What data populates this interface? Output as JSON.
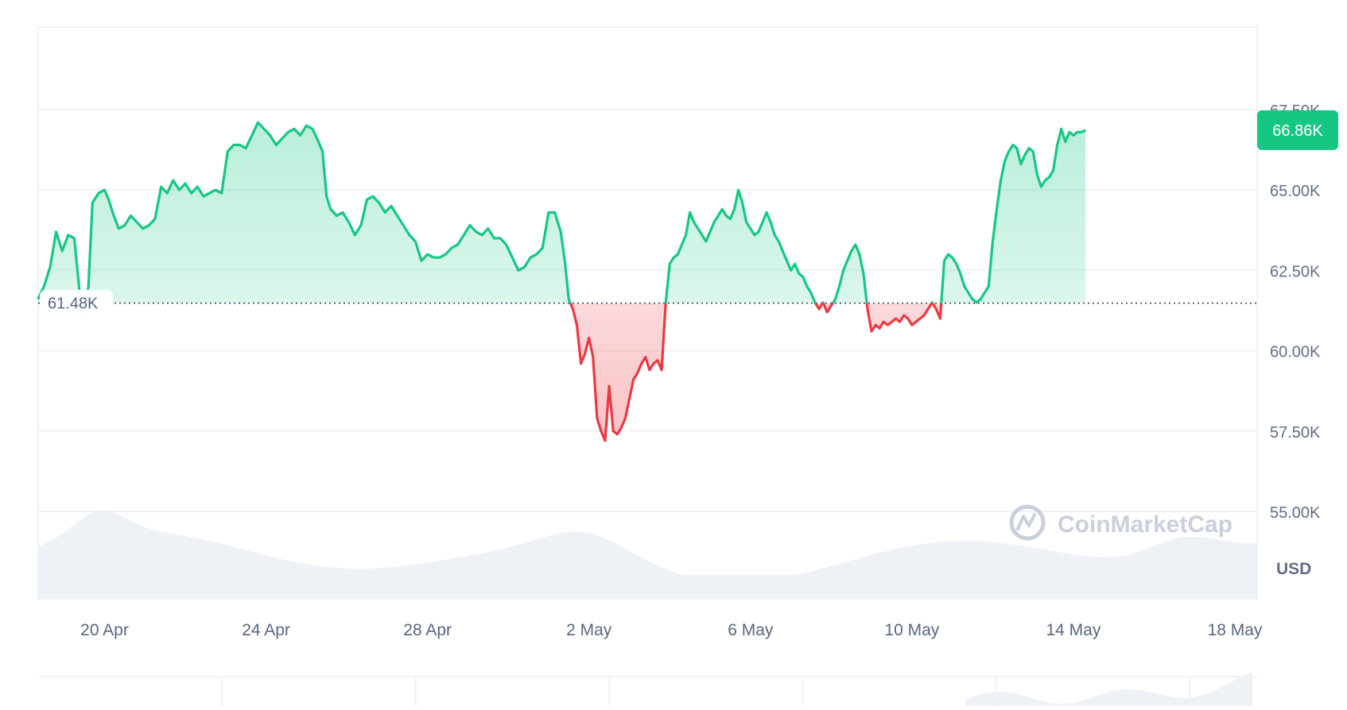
{
  "chart_data": {
    "type": "area",
    "currency_label": "USD",
    "watermark": "CoinMarketCap",
    "current_price_label": "66.86K",
    "baseline_label": "61.48K",
    "baseline_value": 61480,
    "current_value": 66860,
    "y_ticks": [
      {
        "value": 55000,
        "label": "55.00K"
      },
      {
        "value": 57500,
        "label": "57.50K"
      },
      {
        "value": 60000,
        "label": "60.00K"
      },
      {
        "value": 62500,
        "label": "62.50K"
      },
      {
        "value": 65000,
        "label": "65.00K"
      },
      {
        "value": 67500,
        "label": "67.50K"
      }
    ],
    "x_ticks": [
      {
        "day": 1,
        "label": "20 Apr"
      },
      {
        "day": 5,
        "label": "24 Apr"
      },
      {
        "day": 9,
        "label": "28 Apr"
      },
      {
        "day": 13,
        "label": "2 May"
      },
      {
        "day": 17,
        "label": "6 May"
      },
      {
        "day": 21,
        "label": "10 May"
      },
      {
        "day": 25,
        "label": "14 May"
      },
      {
        "day": 29,
        "label": "18 May"
      }
    ],
    "x_start_day": -0.65,
    "x_end_day": 29.38,
    "series": [
      {
        "values": [
          [
            -0.65,
            61.6
          ],
          [
            -0.5,
            62.0
          ],
          [
            -0.35,
            62.6
          ],
          [
            -0.2,
            63.7
          ],
          [
            -0.05,
            63.1
          ],
          [
            0.1,
            63.6
          ],
          [
            0.25,
            63.5
          ],
          [
            0.4,
            61.6
          ],
          [
            0.5,
            61.2
          ],
          [
            0.6,
            62.0
          ],
          [
            0.7,
            64.6
          ],
          [
            0.85,
            64.9
          ],
          [
            1.0,
            65.0
          ],
          [
            1.1,
            64.7
          ],
          [
            1.2,
            64.3
          ],
          [
            1.35,
            63.8
          ],
          [
            1.5,
            63.9
          ],
          [
            1.65,
            64.2
          ],
          [
            1.8,
            64.0
          ],
          [
            1.95,
            63.8
          ],
          [
            2.1,
            63.9
          ],
          [
            2.25,
            64.1
          ],
          [
            2.4,
            65.1
          ],
          [
            2.55,
            64.9
          ],
          [
            2.7,
            65.3
          ],
          [
            2.85,
            65.0
          ],
          [
            3.0,
            65.2
          ],
          [
            3.15,
            64.9
          ],
          [
            3.3,
            65.1
          ],
          [
            3.45,
            64.8
          ],
          [
            3.6,
            64.9
          ],
          [
            3.75,
            65.0
          ],
          [
            3.9,
            64.9
          ],
          [
            4.05,
            66.2
          ],
          [
            4.2,
            66.4
          ],
          [
            4.35,
            66.4
          ],
          [
            4.5,
            66.3
          ],
          [
            4.65,
            66.7
          ],
          [
            4.8,
            67.1
          ],
          [
            4.95,
            66.9
          ],
          [
            5.1,
            66.7
          ],
          [
            5.25,
            66.4
          ],
          [
            5.4,
            66.6
          ],
          [
            5.55,
            66.8
          ],
          [
            5.7,
            66.9
          ],
          [
            5.85,
            66.7
          ],
          [
            6.0,
            67.0
          ],
          [
            6.15,
            66.9
          ],
          [
            6.3,
            66.5
          ],
          [
            6.4,
            66.2
          ],
          [
            6.5,
            64.8
          ],
          [
            6.6,
            64.4
          ],
          [
            6.75,
            64.2
          ],
          [
            6.9,
            64.3
          ],
          [
            7.05,
            64.0
          ],
          [
            7.2,
            63.6
          ],
          [
            7.35,
            63.9
          ],
          [
            7.5,
            64.7
          ],
          [
            7.65,
            64.8
          ],
          [
            7.8,
            64.6
          ],
          [
            7.95,
            64.3
          ],
          [
            8.1,
            64.5
          ],
          [
            8.25,
            64.2
          ],
          [
            8.4,
            63.9
          ],
          [
            8.55,
            63.6
          ],
          [
            8.7,
            63.4
          ],
          [
            8.85,
            62.8
          ],
          [
            9.0,
            63.0
          ],
          [
            9.15,
            62.9
          ],
          [
            9.3,
            62.9
          ],
          [
            9.45,
            63.0
          ],
          [
            9.6,
            63.2
          ],
          [
            9.75,
            63.3
          ],
          [
            9.9,
            63.6
          ],
          [
            10.05,
            63.9
          ],
          [
            10.2,
            63.7
          ],
          [
            10.35,
            63.6
          ],
          [
            10.5,
            63.8
          ],
          [
            10.65,
            63.5
          ],
          [
            10.8,
            63.5
          ],
          [
            10.95,
            63.3
          ],
          [
            11.1,
            62.9
          ],
          [
            11.25,
            62.5
          ],
          [
            11.4,
            62.6
          ],
          [
            11.55,
            62.9
          ],
          [
            11.7,
            63.0
          ],
          [
            11.85,
            63.2
          ],
          [
            12.0,
            64.3
          ],
          [
            12.15,
            64.3
          ],
          [
            12.3,
            63.7
          ],
          [
            12.4,
            62.8
          ],
          [
            12.5,
            61.6
          ],
          [
            12.6,
            61.3
          ],
          [
            12.7,
            60.8
          ],
          [
            12.8,
            59.6
          ],
          [
            12.9,
            59.9
          ],
          [
            13.0,
            60.4
          ],
          [
            13.1,
            59.8
          ],
          [
            13.2,
            57.9
          ],
          [
            13.3,
            57.5
          ],
          [
            13.4,
            57.2
          ],
          [
            13.5,
            58.9
          ],
          [
            13.6,
            57.5
          ],
          [
            13.7,
            57.4
          ],
          [
            13.8,
            57.6
          ],
          [
            13.9,
            57.9
          ],
          [
            14.0,
            58.5
          ],
          [
            14.1,
            59.1
          ],
          [
            14.2,
            59.3
          ],
          [
            14.3,
            59.6
          ],
          [
            14.4,
            59.8
          ],
          [
            14.5,
            59.4
          ],
          [
            14.6,
            59.6
          ],
          [
            14.7,
            59.7
          ],
          [
            14.8,
            59.4
          ],
          [
            14.9,
            61.5
          ],
          [
            15.0,
            62.7
          ],
          [
            15.1,
            62.9
          ],
          [
            15.2,
            63.0
          ],
          [
            15.3,
            63.3
          ],
          [
            15.4,
            63.6
          ],
          [
            15.5,
            64.3
          ],
          [
            15.6,
            64.0
          ],
          [
            15.7,
            63.8
          ],
          [
            15.8,
            63.6
          ],
          [
            15.9,
            63.4
          ],
          [
            16.0,
            63.7
          ],
          [
            16.1,
            64.0
          ],
          [
            16.2,
            64.2
          ],
          [
            16.3,
            64.4
          ],
          [
            16.4,
            64.2
          ],
          [
            16.5,
            64.1
          ],
          [
            16.6,
            64.4
          ],
          [
            16.7,
            65.0
          ],
          [
            16.8,
            64.6
          ],
          [
            16.9,
            64.0
          ],
          [
            17.0,
            63.8
          ],
          [
            17.1,
            63.6
          ],
          [
            17.2,
            63.7
          ],
          [
            17.3,
            64.0
          ],
          [
            17.4,
            64.3
          ],
          [
            17.5,
            64.0
          ],
          [
            17.6,
            63.6
          ],
          [
            17.7,
            63.4
          ],
          [
            17.8,
            63.1
          ],
          [
            17.9,
            62.8
          ],
          [
            18.0,
            62.5
          ],
          [
            18.1,
            62.7
          ],
          [
            18.2,
            62.4
          ],
          [
            18.3,
            62.3
          ],
          [
            18.4,
            62.0
          ],
          [
            18.5,
            61.8
          ],
          [
            18.6,
            61.5
          ],
          [
            18.7,
            61.3
          ],
          [
            18.8,
            61.5
          ],
          [
            18.9,
            61.2
          ],
          [
            19.0,
            61.4
          ],
          [
            19.1,
            61.6
          ],
          [
            19.2,
            62.0
          ],
          [
            19.3,
            62.5
          ],
          [
            19.4,
            62.8
          ],
          [
            19.5,
            63.1
          ],
          [
            19.6,
            63.3
          ],
          [
            19.7,
            63.0
          ],
          [
            19.8,
            62.4
          ],
          [
            19.9,
            61.3
          ],
          [
            20.0,
            60.6
          ],
          [
            20.1,
            60.8
          ],
          [
            20.2,
            60.7
          ],
          [
            20.3,
            60.9
          ],
          [
            20.4,
            60.8
          ],
          [
            20.5,
            60.9
          ],
          [
            20.6,
            61.0
          ],
          [
            20.7,
            60.9
          ],
          [
            20.8,
            61.1
          ],
          [
            20.9,
            61.0
          ],
          [
            21.0,
            60.8
          ],
          [
            21.1,
            60.9
          ],
          [
            21.2,
            61.0
          ],
          [
            21.3,
            61.1
          ],
          [
            21.4,
            61.3
          ],
          [
            21.5,
            61.5
          ],
          [
            21.6,
            61.3
          ],
          [
            21.7,
            61.0
          ],
          [
            21.8,
            62.8
          ],
          [
            21.9,
            63.0
          ],
          [
            22.0,
            62.9
          ],
          [
            22.1,
            62.7
          ],
          [
            22.2,
            62.4
          ],
          [
            22.3,
            62.0
          ],
          [
            22.4,
            61.8
          ],
          [
            22.5,
            61.6
          ],
          [
            22.6,
            61.5
          ],
          [
            22.7,
            61.6
          ],
          [
            22.8,
            61.8
          ],
          [
            22.9,
            62.0
          ],
          [
            23.0,
            63.4
          ],
          [
            23.1,
            64.4
          ],
          [
            23.2,
            65.3
          ],
          [
            23.3,
            65.9
          ],
          [
            23.4,
            66.2
          ],
          [
            23.5,
            66.4
          ],
          [
            23.6,
            66.3
          ],
          [
            23.7,
            65.8
          ],
          [
            23.8,
            66.1
          ],
          [
            23.9,
            66.3
          ],
          [
            24.0,
            66.2
          ],
          [
            24.1,
            65.5
          ],
          [
            24.2,
            65.1
          ],
          [
            24.3,
            65.3
          ],
          [
            24.4,
            65.4
          ],
          [
            24.5,
            65.6
          ],
          [
            24.6,
            66.4
          ],
          [
            24.7,
            66.9
          ],
          [
            24.8,
            66.5
          ],
          [
            24.9,
            66.8
          ],
          [
            25.0,
            66.7
          ],
          [
            25.1,
            66.8
          ],
          [
            25.2,
            66.8
          ],
          [
            25.3,
            66.86
          ]
        ]
      }
    ]
  }
}
